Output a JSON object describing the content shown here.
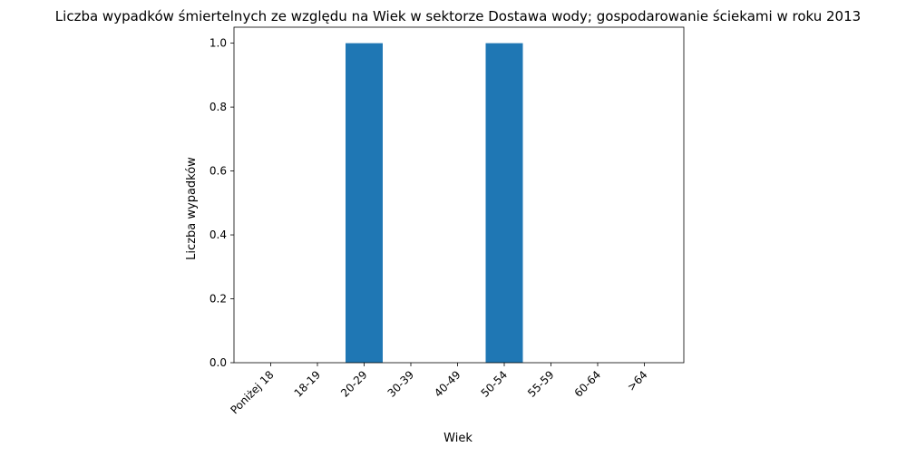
{
  "chart_data": {
    "type": "bar",
    "title": "Liczba wypadków śmiertelnych ze względu na Wiek w sektorze Dostawa wody; gospodarowanie ściekami w roku 2013",
    "xlabel": "Wiek",
    "ylabel": "Liczba wypadków",
    "categories": [
      "Poniżej 18",
      "18-19",
      "20-29",
      "30-39",
      "40-49",
      "50-54",
      "55-59",
      "60-64",
      ">64"
    ],
    "values": [
      0,
      0,
      1,
      0,
      0,
      1,
      0,
      0,
      0
    ],
    "ylim": [
      0,
      1.05
    ],
    "yticks": [
      0.0,
      0.2,
      0.4,
      0.6,
      0.8,
      1.0
    ],
    "ytick_labels": [
      "0.0",
      "0.2",
      "0.4",
      "0.6",
      "0.8",
      "1.0"
    ],
    "grid": false,
    "legend": "none",
    "bar_color": "#1f77b4"
  }
}
